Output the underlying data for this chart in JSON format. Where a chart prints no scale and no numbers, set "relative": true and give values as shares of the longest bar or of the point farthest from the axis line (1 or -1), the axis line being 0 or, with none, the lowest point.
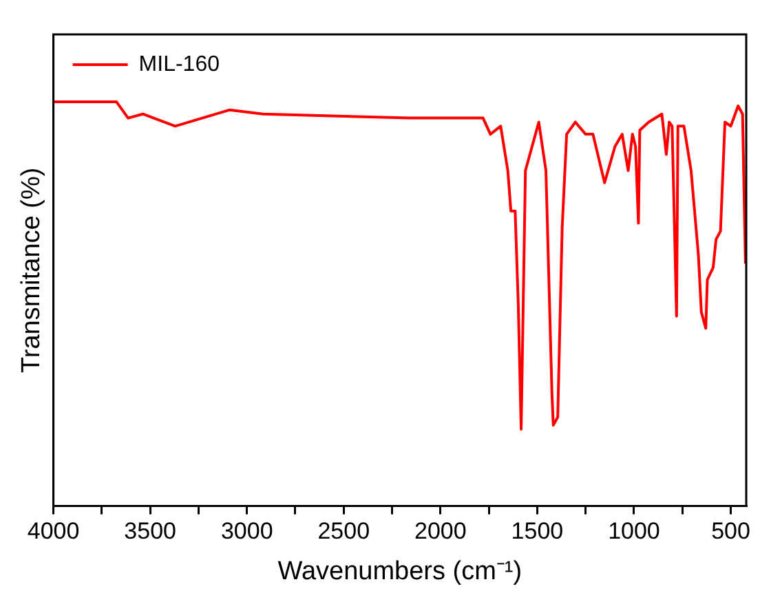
{
  "chart_data": {
    "type": "line",
    "xlabel": "Wavenumbers (cm⁻¹)",
    "ylabel": "Transmitance (%)",
    "relative": true,
    "legend": "top left",
    "grid": false,
    "marker": "none",
    "line_style": "solid",
    "xlim": [
      4000,
      420
    ],
    "xticks": [
      4000,
      {
        "value": 3750,
        "label": null
      },
      3500,
      {
        "value": 3250,
        "label": null
      },
      3000,
      {
        "value": 2750,
        "label": null
      },
      2500,
      {
        "value": 2250,
        "label": null
      },
      2000,
      {
        "value": 1750,
        "label": null
      },
      1500,
      {
        "value": 1250,
        "label": null
      },
      1000,
      {
        "value": 750,
        "label": null
      },
      500
    ],
    "x": [
      4000,
      3674,
      3614,
      3538,
      3371,
      3091,
      2917,
      2159,
      1780,
      1742,
      1689,
      1652,
      1636,
      1614,
      1598,
      1583,
      1561,
      1492,
      1455,
      1424,
      1417,
      1394,
      1371,
      1348,
      1303,
      1250,
      1212,
      1152,
      1098,
      1061,
      1030,
      1008,
      992,
      977,
      970,
      924,
      856,
      833,
      818,
      803,
      780,
      773,
      742,
      705,
      667,
      652,
      629,
      621,
      591,
      576,
      553,
      530,
      500,
      462,
      439,
      424
    ],
    "series": [
      {
        "name": "MIL-160",
        "color": "#ff0000",
        "values": [
          1.0,
          1.0,
          0.96,
          0.97,
          0.94,
          0.98,
          0.97,
          0.96,
          0.96,
          0.92,
          0.94,
          0.83,
          0.73,
          0.73,
          0.5,
          0.19,
          0.83,
          0.95,
          0.83,
          0.28,
          0.2,
          0.22,
          0.69,
          0.92,
          0.95,
          0.92,
          0.92,
          0.8,
          0.89,
          0.92,
          0.83,
          0.92,
          0.89,
          0.7,
          0.93,
          0.95,
          0.97,
          0.87,
          0.95,
          0.94,
          0.47,
          0.94,
          0.94,
          0.83,
          0.62,
          0.48,
          0.44,
          0.56,
          0.59,
          0.66,
          0.68,
          0.95,
          0.94,
          0.99,
          0.97,
          0.6
        ]
      }
    ]
  }
}
